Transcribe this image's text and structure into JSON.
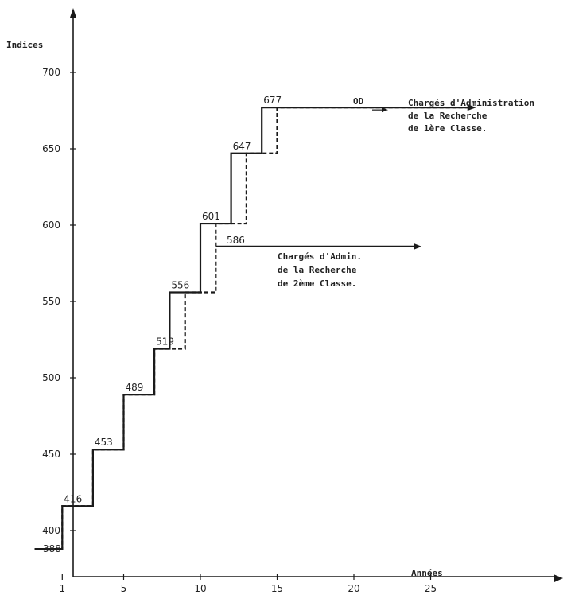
{
  "chart_data": {
    "type": "line",
    "subtype": "step",
    "xlabel": "Années",
    "ylabel": "Indices",
    "xlim": [
      0,
      32
    ],
    "ylim": [
      375,
      730
    ],
    "x_ticks": [
      1,
      5,
      10,
      15,
      20,
      25
    ],
    "y_ticks": [
      400,
      450,
      500,
      550,
      600,
      650,
      700
    ],
    "series": [
      {
        "style": "solid",
        "steps": [
          {
            "x": 0,
            "y": 388
          },
          {
            "x": 1,
            "y": 416
          },
          {
            "x": 3,
            "y": 453
          },
          {
            "x": 5,
            "y": 489
          },
          {
            "x": 7,
            "y": 519
          },
          {
            "x": 8,
            "y": 556
          },
          {
            "x": 10,
            "y": 601
          },
          {
            "x": 12,
            "y": 647
          },
          {
            "x": 14,
            "y": 677
          },
          {
            "x": 27.5,
            "y": 677
          }
        ]
      },
      {
        "style": "dashed",
        "steps": [
          {
            "x": 0,
            "y": 388
          },
          {
            "x": 1,
            "y": 416
          },
          {
            "x": 3,
            "y": 453
          },
          {
            "x": 5,
            "y": 489
          },
          {
            "x": 7,
            "y": 519
          },
          {
            "x": 9,
            "y": 556
          },
          {
            "x": 11,
            "y": 601
          },
          {
            "x": 13,
            "y": 647
          },
          {
            "x": 15,
            "y": 677
          },
          {
            "x": 27.5,
            "y": 677
          }
        ]
      },
      {
        "style": "solid-arrow",
        "steps": [
          {
            "x": 11,
            "y": 586
          },
          {
            "x": 24,
            "y": 586
          }
        ]
      }
    ],
    "step_labels": [
      {
        "text": "388",
        "x": 0,
        "y": 388
      },
      {
        "text": "416",
        "x": 1,
        "y": 416
      },
      {
        "text": "453",
        "x": 3,
        "y": 453
      },
      {
        "text": "489",
        "x": 5,
        "y": 489
      },
      {
        "text": "519",
        "x": 7,
        "y": 519
      },
      {
        "text": "556",
        "x": 8,
        "y": 556
      },
      {
        "text": "601",
        "x": 10,
        "y": 601
      },
      {
        "text": "647",
        "x": 12,
        "y": 647
      },
      {
        "text": "677",
        "x": 14,
        "y": 677
      },
      {
        "text": "586",
        "x": 11.5,
        "y": 586
      }
    ],
    "annotations": [
      {
        "id": "classe1",
        "lines": [
          "Chargés d'Administration",
          "de la Recherche",
          "de 1ère Classe."
        ]
      },
      {
        "id": "classe2",
        "lines": [
          "Chargés d'Admin.",
          "de la Recherche",
          "de 2ème Classe."
        ]
      },
      {
        "id": "od",
        "lines": [
          "OD"
        ]
      }
    ]
  }
}
